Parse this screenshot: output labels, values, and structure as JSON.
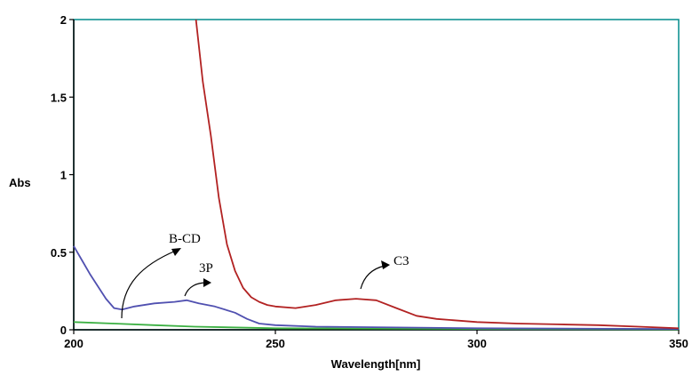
{
  "chart_data": {
    "type": "line",
    "xlabel": "Wavelength[nm]",
    "ylabel": "Abs",
    "xlim": [
      200,
      350
    ],
    "ylim": [
      0,
      2
    ],
    "x_ticks": [
      "200",
      "250",
      "300",
      "350"
    ],
    "y_ticks": [
      "0",
      "0.5",
      "1",
      "1.5",
      "2"
    ],
    "grid": false,
    "series": [
      {
        "name": "C3",
        "color": "#b22222",
        "points": [
          [
            230.3,
            2.0
          ],
          [
            232,
            1.6
          ],
          [
            234,
            1.25
          ],
          [
            236,
            0.85
          ],
          [
            238,
            0.55
          ],
          [
            240,
            0.38
          ],
          [
            242,
            0.27
          ],
          [
            244,
            0.21
          ],
          [
            246,
            0.18
          ],
          [
            248,
            0.16
          ],
          [
            250,
            0.15
          ],
          [
            255,
            0.14
          ],
          [
            260,
            0.16
          ],
          [
            265,
            0.19
          ],
          [
            270,
            0.2
          ],
          [
            275,
            0.19
          ],
          [
            280,
            0.14
          ],
          [
            285,
            0.09
          ],
          [
            290,
            0.07
          ],
          [
            300,
            0.05
          ],
          [
            310,
            0.04
          ],
          [
            320,
            0.035
          ],
          [
            330,
            0.03
          ],
          [
            340,
            0.02
          ],
          [
            350,
            0.01
          ]
        ]
      },
      {
        "name": "3P",
        "color": "#5050b0",
        "points": [
          [
            200,
            0.54
          ],
          [
            202,
            0.45
          ],
          [
            204,
            0.36
          ],
          [
            206,
            0.28
          ],
          [
            208,
            0.2
          ],
          [
            210,
            0.14
          ],
          [
            212,
            0.13
          ],
          [
            215,
            0.15
          ],
          [
            220,
            0.17
          ],
          [
            225,
            0.18
          ],
          [
            228,
            0.19
          ],
          [
            231,
            0.17
          ],
          [
            235,
            0.15
          ],
          [
            240,
            0.11
          ],
          [
            243,
            0.07
          ],
          [
            246,
            0.04
          ],
          [
            250,
            0.03
          ],
          [
            260,
            0.02
          ],
          [
            280,
            0.015
          ],
          [
            300,
            0.01
          ],
          [
            350,
            0.005
          ]
        ]
      },
      {
        "name": "B-CD",
        "color": "#3cb043",
        "points": [
          [
            200,
            0.05
          ],
          [
            210,
            0.04
          ],
          [
            220,
            0.03
          ],
          [
            230,
            0.02
          ],
          [
            250,
            0.01
          ],
          [
            300,
            0.005
          ],
          [
            350,
            0.003
          ]
        ]
      }
    ],
    "annotations": [
      {
        "text": "B-CD",
        "label_at": [
          223,
          0.52
        ]
      },
      {
        "text": "3P",
        "label_at": [
          232,
          0.38
        ]
      },
      {
        "text": "C3",
        "label_at": [
          280,
          0.42
        ]
      }
    ]
  }
}
